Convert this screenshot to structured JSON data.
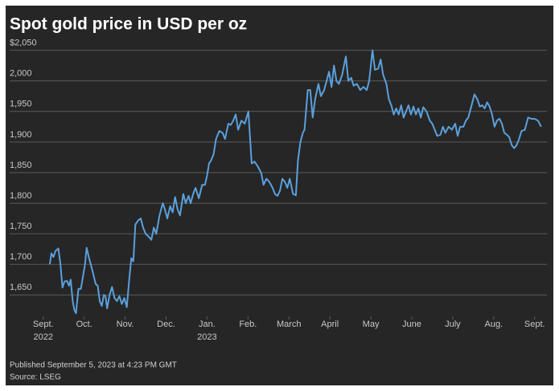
{
  "chart_data": {
    "type": "line",
    "title": "Spot gold price in USD per oz",
    "notes": [
      "Published September 5, 2023 at 4:23 PM GMT",
      "Source: LSEG"
    ],
    "xlim": [
      -0.82,
      12.3
    ],
    "xticks": [
      {
        "value": 0,
        "label": [
          "Sept.",
          "2022"
        ]
      },
      {
        "value": 1,
        "label": "Oct."
      },
      {
        "value": 2,
        "label": "Nov."
      },
      {
        "value": 3,
        "label": "Dec."
      },
      {
        "value": 4,
        "label": [
          "Jan.",
          "2023"
        ]
      },
      {
        "value": 5,
        "label": "Feb."
      },
      {
        "value": 6,
        "label": "March"
      },
      {
        "value": 7,
        "label": "April"
      },
      {
        "value": 8,
        "label": "May"
      },
      {
        "value": 9,
        "label": "June"
      },
      {
        "value": 10,
        "label": "July"
      },
      {
        "value": 11,
        "label": "Aug."
      },
      {
        "value": 12,
        "label": "Sept."
      }
    ],
    "ylim": [
      1615,
      2060
    ],
    "yticks": [
      {
        "value": 1650,
        "label": "1,650"
      },
      {
        "value": 1700,
        "label": "1,700"
      },
      {
        "value": 1750,
        "label": "1,750"
      },
      {
        "value": 1800,
        "label": "1,800"
      },
      {
        "value": 1850,
        "label": "1,850"
      },
      {
        "value": 1900,
        "label": "1,900"
      },
      {
        "value": 1950,
        "label": "1,950"
      },
      {
        "value": 2000,
        "label": "2,000"
      },
      {
        "value": 2050,
        "label": "$2,050"
      }
    ],
    "grid": true,
    "color": "#5aa0dc",
    "x": [
      0.16,
      0.2,
      0.25,
      0.3,
      0.37,
      0.42,
      0.47,
      0.52,
      0.58,
      0.63,
      0.67,
      0.72,
      0.76,
      0.8,
      0.86,
      0.92,
      0.97,
      1.02,
      1.06,
      1.12,
      1.2,
      1.28,
      1.33,
      1.38,
      1.43,
      1.48,
      1.52,
      1.56,
      1.62,
      1.68,
      1.74,
      1.8,
      1.86,
      1.92,
      1.98,
      2.04,
      2.1,
      2.15,
      2.2,
      2.25,
      2.32,
      2.38,
      2.44,
      2.5,
      2.58,
      2.64,
      2.7,
      2.76,
      2.84,
      2.92,
      2.97,
      3.03,
      3.1,
      3.16,
      3.22,
      3.28,
      3.34,
      3.42,
      3.48,
      3.55,
      3.6,
      3.66,
      3.72,
      3.8,
      3.88,
      3.95,
      4.0,
      4.05,
      4.1,
      4.16,
      4.22,
      4.3,
      4.38,
      4.44,
      4.52,
      4.58,
      4.64,
      4.7,
      4.76,
      4.84,
      4.92,
      5.01,
      5.09,
      5.16,
      5.24,
      5.32,
      5.38,
      5.45,
      5.52,
      5.6,
      5.66,
      5.72,
      5.78,
      5.84,
      5.9,
      5.96,
      6.02,
      6.1,
      6.17,
      6.22,
      6.28,
      6.34,
      6.38,
      6.46,
      6.52,
      6.58,
      6.64,
      6.72,
      6.78,
      6.86,
      6.92,
      6.98,
      7.04,
      7.1,
      7.16,
      7.22,
      7.3,
      7.39,
      7.45,
      7.52,
      7.58,
      7.66,
      7.74,
      7.82,
      7.9,
      7.96,
      8.04,
      8.1,
      8.18,
      8.24,
      8.3,
      8.38,
      8.44,
      8.5,
      8.56,
      8.62,
      8.68,
      8.74,
      8.8,
      8.86,
      8.92,
      8.98,
      9.04,
      9.1,
      9.16,
      9.22,
      9.28,
      9.36,
      9.44,
      9.5,
      9.56,
      9.62,
      9.7,
      9.76,
      9.82,
      9.9,
      9.98,
      10.06,
      10.12,
      10.18,
      10.26,
      10.32,
      10.38,
      10.46,
      10.53,
      10.6,
      10.66,
      10.72,
      10.78,
      10.84,
      10.9,
      10.96,
      11.02,
      11.08,
      11.14,
      11.2,
      11.26,
      11.32,
      11.38,
      11.44,
      11.5,
      11.56,
      11.62,
      11.68,
      11.76,
      11.84,
      11.92,
      12.0,
      12.08,
      12.16
    ],
    "values": [
      1700,
      1718,
      1712,
      1722,
      1726,
      1700,
      1662,
      1672,
      1673,
      1665,
      1675,
      1640,
      1625,
      1620,
      1660,
      1660,
      1680,
      1700,
      1727,
      1710,
      1690,
      1668,
      1665,
      1640,
      1632,
      1650,
      1648,
      1628,
      1650,
      1663,
      1645,
      1640,
      1648,
      1635,
      1645,
      1630,
      1675,
      1710,
      1705,
      1765,
      1772,
      1775,
      1760,
      1750,
      1745,
      1740,
      1760,
      1750,
      1780,
      1800,
      1790,
      1775,
      1795,
      1785,
      1810,
      1790,
      1780,
      1815,
      1800,
      1812,
      1800,
      1815,
      1825,
      1808,
      1830,
      1830,
      1845,
      1865,
      1870,
      1880,
      1905,
      1918,
      1915,
      1905,
      1930,
      1928,
      1935,
      1945,
      1920,
      1935,
      1930,
      1950,
      1865,
      1868,
      1860,
      1850,
      1830,
      1840,
      1835,
      1825,
      1815,
      1812,
      1820,
      1840,
      1835,
      1825,
      1840,
      1815,
      1813,
      1870,
      1900,
      1915,
      1920,
      1985,
      1985,
      1940,
      1970,
      1995,
      1975,
      1985,
      2000,
      2015,
      1990,
      2025,
      2000,
      1995,
      2010,
      2040,
      2000,
      2005,
      1992,
      1995,
      1985,
      1990,
      1985,
      2000,
      2050,
      2018,
      2020,
      2035,
      2010,
      1995,
      1970,
      1960,
      1945,
      1955,
      1945,
      1960,
      1940,
      1950,
      1960,
      1945,
      1958,
      1945,
      1955,
      1940,
      1957,
      1950,
      1935,
      1930,
      1920,
      1910,
      1912,
      1925,
      1915,
      1925,
      1920,
      1930,
      1910,
      1925,
      1925,
      1935,
      1940,
      1960,
      1978,
      1970,
      1958,
      1960,
      1955,
      1965,
      1958,
      1945,
      1925,
      1935,
      1938,
      1930,
      1915,
      1912,
      1908,
      1895,
      1890,
      1895,
      1905,
      1918,
      1920,
      1940,
      1938,
      1938,
      1935,
      1925
    ]
  }
}
